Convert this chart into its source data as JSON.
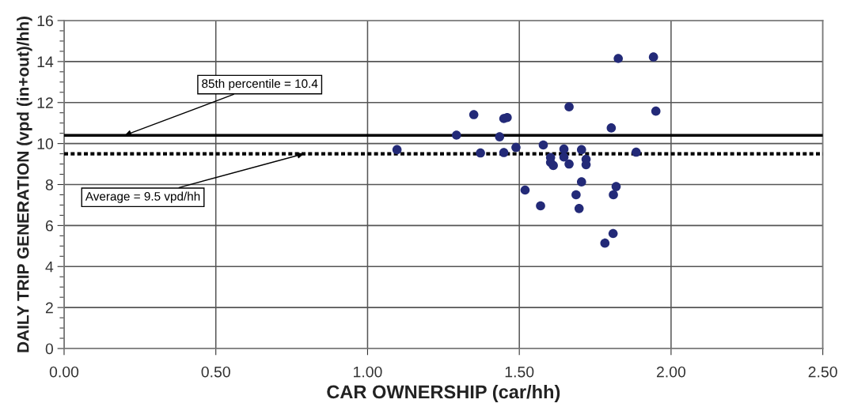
{
  "chart_data": {
    "type": "scatter",
    "xlabel": "CAR OWNERSHIP (car/hh)",
    "ylabel": "DAILY TRIP GENERATION (vpd (in+out)/hh)",
    "x": [
      1.097,
      1.293,
      1.35,
      1.372,
      1.435,
      1.449,
      1.46,
      1.449,
      1.489,
      1.519,
      1.57,
      1.579,
      1.603,
      1.603,
      1.612,
      1.647,
      1.647,
      1.664,
      1.664,
      1.687,
      1.697,
      1.705,
      1.705,
      1.72,
      1.72,
      1.782,
      1.803,
      1.809,
      1.81,
      1.819,
      1.826,
      1.885,
      1.942,
      1.95
    ],
    "series": [
      {
        "color": "#232a78",
        "values": [
          9.7,
          10.41,
          11.41,
          9.54,
          10.33,
          11.22,
          11.27,
          9.56,
          9.81,
          7.73,
          6.96,
          9.93,
          9.32,
          9.08,
          8.93,
          9.73,
          9.34,
          11.79,
          9.0,
          7.5,
          6.83,
          9.7,
          8.13,
          9.23,
          8.97,
          5.14,
          10.76,
          5.61,
          7.5,
          7.9,
          14.15,
          9.58,
          14.22,
          11.58
        ]
      }
    ],
    "xlim": [
      0,
      2.5
    ],
    "xticks": [
      {
        "value": 0,
        "label": "0.00"
      },
      {
        "value": 0.5,
        "label": "0.50"
      },
      {
        "value": 1,
        "label": "1.00"
      },
      {
        "value": 1.5,
        "label": "1.50"
      },
      {
        "value": 2,
        "label": "2.00"
      },
      {
        "value": 2.5,
        "label": "2.50"
      }
    ],
    "ylim": [
      0,
      16
    ],
    "yticks": [
      0,
      2,
      4,
      6,
      8,
      10,
      12,
      14,
      16
    ],
    "ref_lines": [
      {
        "axis": "y",
        "value": 10.4,
        "label": "85th percentile = 10.4",
        "color": "#000000",
        "line_style": "solid"
      },
      {
        "axis": "y",
        "value": 9.5,
        "label": "Average = 9.5 vpd/hh",
        "color": "#000000",
        "line_style": "dotted"
      }
    ],
    "grid": true,
    "marker": "circle"
  }
}
